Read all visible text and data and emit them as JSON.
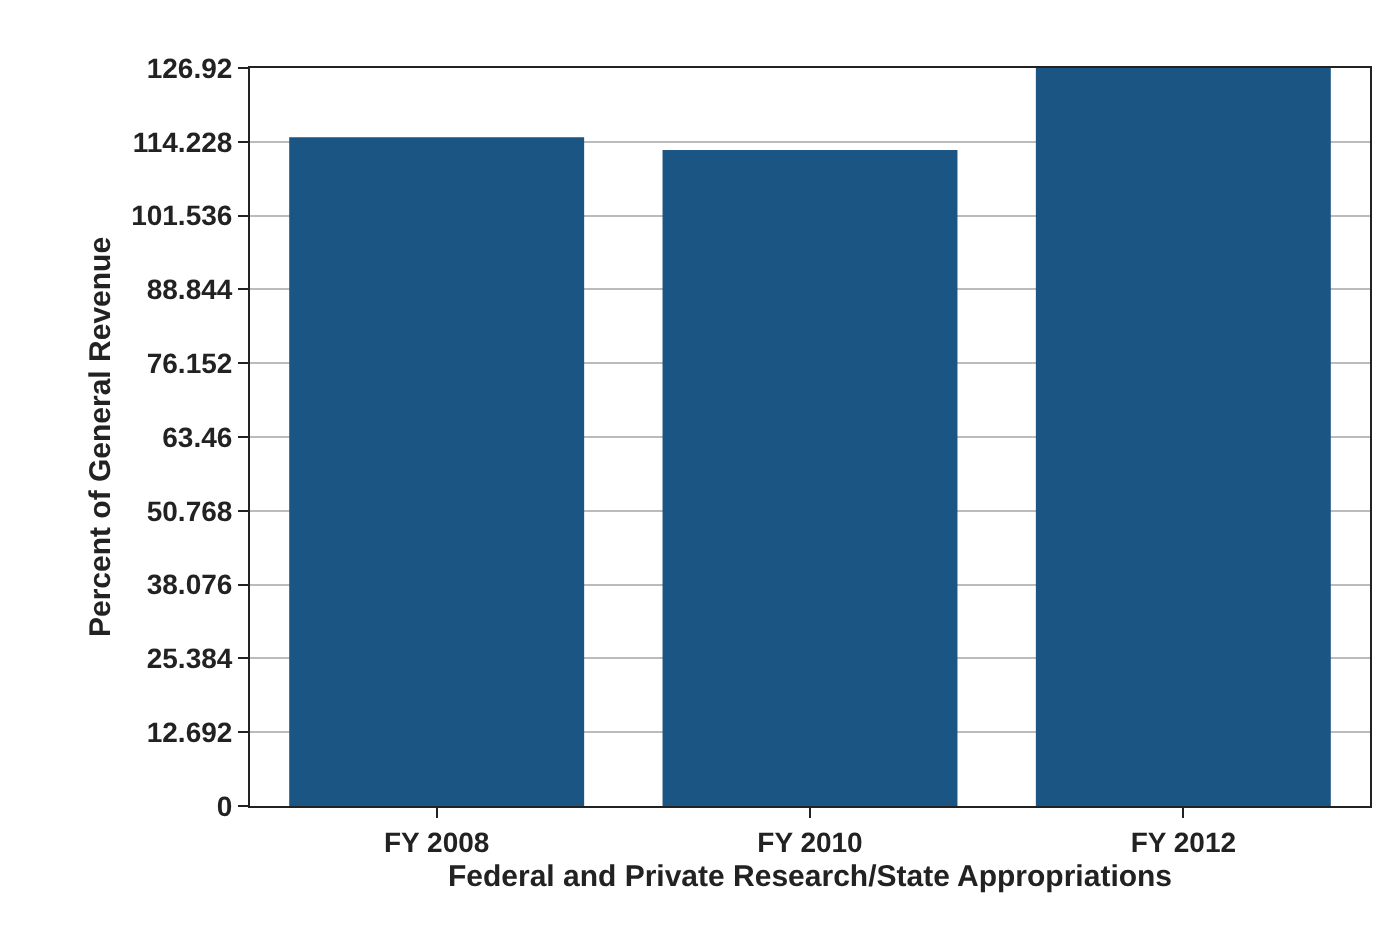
{
  "chart_data": {
    "type": "bar",
    "xlabel": "Federal and Private Research/State Appropriations",
    "ylabel": "Percent of General Revenue",
    "categories": [
      "FY 2008",
      "FY 2010",
      "FY 2012"
    ],
    "values": [
      115,
      112.8,
      126.92
    ],
    "color": "#1a5583",
    "ylim": [
      0,
      126.92
    ],
    "yticks": [
      0,
      12.692,
      25.384,
      38.076,
      50.768,
      63.46,
      76.152,
      88.844,
      101.536,
      114.228,
      126.92
    ],
    "grid": "y"
  }
}
